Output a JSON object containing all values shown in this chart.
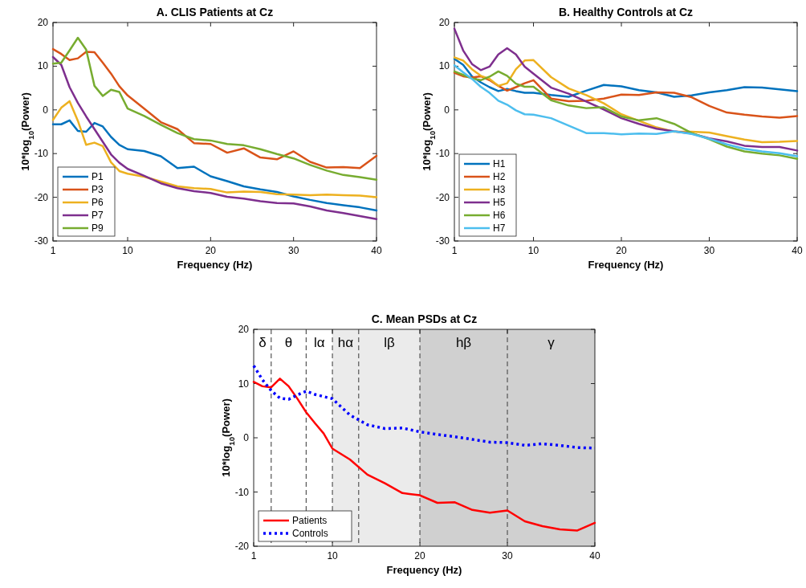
{
  "chart_data": [
    {
      "type": "line",
      "title": "A. CLIS Patients at Cz",
      "xlabel": "Frequency (Hz)",
      "ylabel": "10*log$_{10}$(Power)",
      "x": [
        1,
        2,
        3,
        4,
        5,
        6,
        7,
        8,
        9,
        10,
        12,
        14,
        16,
        18,
        20,
        22,
        24,
        26,
        28,
        30,
        32,
        34,
        36,
        38,
        40
      ],
      "xlim": [
        1,
        40
      ],
      "ylim": [
        -30,
        20
      ],
      "xticks": [
        1,
        10,
        20,
        30,
        40
      ],
      "yticks": [
        -30,
        -20,
        -10,
        0,
        10,
        20
      ],
      "legend": "bottom left",
      "series": [
        {
          "name": "P1",
          "color": "#0072bd",
          "values": [
            -3.3,
            -3.3,
            -2.4,
            -4.8,
            -5,
            -3,
            -3.8,
            -6.2,
            -8,
            -9,
            -9.4,
            -10.6,
            -13.3,
            -13,
            -15.2,
            -16.3,
            -17.5,
            -18.2,
            -18.8,
            -19.8,
            -20.6,
            -21.3,
            -21.8,
            -22.3,
            -23
          ]
        },
        {
          "name": "P3",
          "color": "#d95319",
          "values": [
            13.9,
            12.8,
            11.4,
            11.8,
            13.3,
            13.2,
            10.8,
            8.3,
            5.4,
            3.3,
            0.3,
            -2.8,
            -4.4,
            -7.6,
            -7.8,
            -9.8,
            -8.8,
            -10.9,
            -11.3,
            -9.5,
            -11.9,
            -13.2,
            -13.1,
            -13.3,
            -10.5
          ]
        },
        {
          "name": "P6",
          "color": "#edb120",
          "values": [
            -2.3,
            0.5,
            2,
            -2.5,
            -8,
            -7.5,
            -8.3,
            -12,
            -14,
            -14.6,
            -15.3,
            -16.4,
            -17.5,
            -17.9,
            -18.1,
            -18.9,
            -18.7,
            -18.8,
            -19.3,
            -19.4,
            -19.5,
            -19.4,
            -19.5,
            -19.6,
            -20
          ]
        },
        {
          "name": "P7",
          "color": "#7e2f8e",
          "values": [
            12.1,
            10.3,
            5.2,
            1.6,
            -1.5,
            -4.4,
            -7.3,
            -10.2,
            -12.1,
            -13.5,
            -15.1,
            -16.8,
            -17.9,
            -18.6,
            -19,
            -19.9,
            -20.3,
            -20.9,
            -21.3,
            -21.4,
            -22.1,
            -23,
            -23.6,
            -24.3,
            -25
          ]
        },
        {
          "name": "P9",
          "color": "#77ac30",
          "values": [
            10.6,
            10.8,
            13.6,
            16.5,
            13.8,
            5.5,
            3.2,
            4.6,
            4.1,
            0.3,
            -1.4,
            -3.4,
            -5.3,
            -6.7,
            -7,
            -7.8,
            -8.1,
            -9,
            -10.1,
            -11.1,
            -12.6,
            -13.9,
            -14.9,
            -15.4,
            -16
          ]
        }
      ]
    },
    {
      "type": "line",
      "title": "B. Healthy Controls at Cz",
      "xlabel": "Frequency (Hz)",
      "ylabel": "10*log$_{10}$(Power)",
      "x": [
        1,
        2,
        3,
        4,
        5,
        6,
        7,
        8,
        9,
        10,
        12,
        14,
        16,
        18,
        20,
        22,
        24,
        26,
        28,
        30,
        32,
        34,
        36,
        38,
        40
      ],
      "xlim": [
        1,
        40
      ],
      "ylim": [
        -30,
        20
      ],
      "xticks": [
        1,
        10,
        20,
        30,
        40
      ],
      "yticks": [
        -30,
        -20,
        -10,
        0,
        10,
        20
      ],
      "legend": "bottom left",
      "series": [
        {
          "name": "H1",
          "color": "#0072bd",
          "values": [
            11.7,
            10.3,
            7.7,
            6.3,
            5.2,
            4.3,
            4.8,
            4.3,
            3.9,
            3.9,
            3.4,
            3,
            4.4,
            5.7,
            5.4,
            4.5,
            4,
            3,
            3.3,
            4,
            4.5,
            5.2,
            5.1,
            4.7,
            4.3
          ]
        },
        {
          "name": "H2",
          "color": "#d95319",
          "values": [
            8.5,
            7.7,
            7.4,
            7.7,
            6.8,
            5.5,
            4.4,
            5.2,
            6.1,
            6.8,
            2.6,
            2,
            2.1,
            2.6,
            3.5,
            3.4,
            4,
            3.9,
            2.9,
            0.9,
            -0.6,
            -1.1,
            -1.5,
            -1.8,
            -1.4
          ]
        },
        {
          "name": "H3",
          "color": "#edb120",
          "values": [
            12,
            11.3,
            9.3,
            7.8,
            7.1,
            5.5,
            6.1,
            9.3,
            11.3,
            11.4,
            7.5,
            4.9,
            3.4,
            1.5,
            -1,
            -2.5,
            -4,
            -5,
            -5,
            -5.2,
            -6,
            -6.8,
            -7.4,
            -7.3,
            -7.1
          ]
        },
        {
          "name": "H5",
          "color": "#7e2f8e",
          "values": [
            18.6,
            13.6,
            10.5,
            9.1,
            9.9,
            12.7,
            14.1,
            12.7,
            9.9,
            8.3,
            5.1,
            3.7,
            1.9,
            0.1,
            -1.9,
            -3.2,
            -4.3,
            -4.9,
            -5.4,
            -6.5,
            -7.2,
            -8.2,
            -8.5,
            -8.5,
            -9.3
          ]
        },
        {
          "name": "H6",
          "color": "#77ac30",
          "values": [
            8.8,
            8,
            7.2,
            6.8,
            7.6,
            8.8,
            7.8,
            6,
            5.3,
            5.3,
            2.2,
            1,
            0.4,
            0.6,
            -1.5,
            -2.4,
            -1.9,
            -3.2,
            -5.3,
            -6.7,
            -8.4,
            -9.5,
            -10,
            -10.4,
            -11.2
          ]
        },
        {
          "name": "H7",
          "color": "#4dbeee",
          "values": [
            10.2,
            8.6,
            7.1,
            5.3,
            3.9,
            2.1,
            1.2,
            -0.1,
            -1,
            -1.1,
            -1.9,
            -3.6,
            -5.3,
            -5.3,
            -5.6,
            -5.4,
            -5.5,
            -4.9,
            -5.5,
            -6.6,
            -7.9,
            -8.9,
            -9.5,
            -9.9,
            -10.6
          ]
        }
      ]
    },
    {
      "type": "line",
      "title": "C. Mean PSDs at Cz",
      "xlabel": "Frequency (Hz)",
      "ylabel": "10*log$_{10}$(Power)",
      "x": [
        1,
        2,
        3,
        4,
        5,
        6,
        7,
        8,
        9,
        10,
        12,
        14,
        16,
        18,
        20,
        22,
        24,
        26,
        28,
        30,
        32,
        34,
        36,
        38,
        40
      ],
      "xlim": [
        1,
        40
      ],
      "ylim": [
        -20,
        20
      ],
      "xticks": [
        1,
        10,
        20,
        30,
        40
      ],
      "yticks": [
        -20,
        -10,
        0,
        10,
        20
      ],
      "legend": "bottom left",
      "bands": [
        {
          "axis": "x",
          "from": 10,
          "to": 13,
          "label": "hα",
          "color": "#ebebeb"
        },
        {
          "axis": "x",
          "from": 13,
          "to": 20,
          "label": "lβ",
          "color": "#ebebeb"
        },
        {
          "axis": "x",
          "from": 20,
          "to": 30,
          "label": "hβ",
          "color": "#d0d0d0"
        },
        {
          "axis": "x",
          "from": 30,
          "to": 40,
          "label": "γ",
          "color": "#d0d0d0"
        }
      ],
      "annotations": [
        "δ",
        "θ",
        "lα"
      ],
      "ref_lines": [
        {
          "axis": "x",
          "value": 3,
          "color": "#555555",
          "line_style": "dashed"
        },
        {
          "axis": "x",
          "value": 7,
          "color": "#555555",
          "line_style": "dashed"
        },
        {
          "axis": "x",
          "value": 10,
          "color": "#555555",
          "line_style": "dashed"
        },
        {
          "axis": "x",
          "value": 13,
          "color": "#555555",
          "line_style": "dashed"
        },
        {
          "axis": "x",
          "value": 20,
          "color": "#555555",
          "line_style": "dashed"
        },
        {
          "axis": "x",
          "value": 30,
          "color": "#555555",
          "line_style": "dashed"
        }
      ],
      "series": [
        {
          "name": "Patients",
          "color": "#ff0000",
          "line_style": "solid",
          "values": [
            10.3,
            9.5,
            9.3,
            10.9,
            9.5,
            7.2,
            4.7,
            2.7,
            0.8,
            -2,
            -4,
            -6.8,
            -8.4,
            -10.2,
            -10.6,
            -12,
            -11.9,
            -13.3,
            -13.8,
            -13.4,
            -15.4,
            -16.3,
            -16.9,
            -17.1,
            -15.7
          ]
        },
        {
          "name": "Controls",
          "color": "#0000ff",
          "line_style": "dotted",
          "values": [
            13.3,
            10.7,
            8.7,
            7.3,
            7.1,
            7.9,
            8.6,
            8,
            7.6,
            7.2,
            4.2,
            2.4,
            1.7,
            1.8,
            1.1,
            0.6,
            0.2,
            -0.3,
            -0.8,
            -0.9,
            -1.4,
            -1.1,
            -1.4,
            -1.8,
            -1.9
          ]
        }
      ]
    }
  ]
}
